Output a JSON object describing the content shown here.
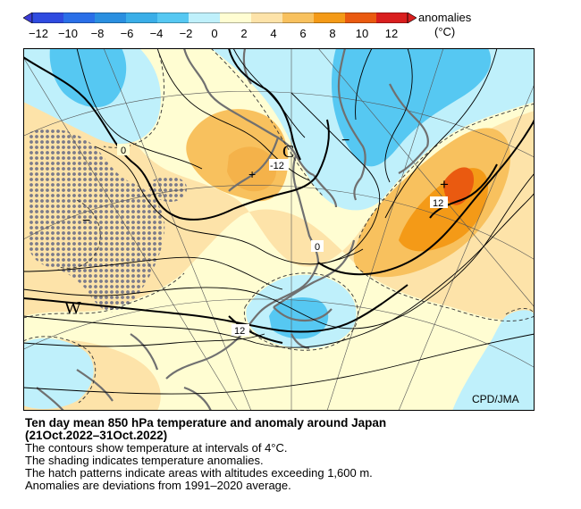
{
  "legend": {
    "title": "anomalies",
    "unit": "(°C)",
    "ticks": [
      "−12",
      "−10",
      "−8",
      "−6",
      "−4",
      "−2",
      "0",
      "2",
      "4",
      "6",
      "8",
      "10",
      "12"
    ],
    "colors": {
      "neg_strong": "#3b3bd6",
      "neg_mid": "#2a8fe0",
      "neg_light": "#56c8f2",
      "neg_faint": "#bff0fb",
      "neutral": "#fffdd2",
      "pos_faint": "#fde3a9",
      "pos_light": "#f8c15e",
      "pos_mid": "#f49a17",
      "pos_strong": "#ea5a10",
      "pos_max": "#d91e1e"
    }
  },
  "map": {
    "labels": {
      "cold_center": "C",
      "warm_center": "W",
      "minus": "−",
      "plus": "+"
    },
    "contour_labels": {
      "c0_west": "0",
      "c_minus12": "-12",
      "c0_east": "0",
      "c12_pacific": "12",
      "c12_south": "12"
    },
    "credit": "CPD/JMA"
  },
  "caption": {
    "title_line1": "Ten day mean 850 hPa temperature and anomaly around Japan",
    "title_line2": "(21Oct.2022–31Oct.2022)",
    "line1": "The contours show temperature at intervals of 4°C.",
    "line2": "The shading indicates temperature anomalies.",
    "line3": "The hatch patterns indicate areas with altitudes exceeding 1,600 m.",
    "line4": "Anomalies are deviations from 1991–2020 average."
  }
}
